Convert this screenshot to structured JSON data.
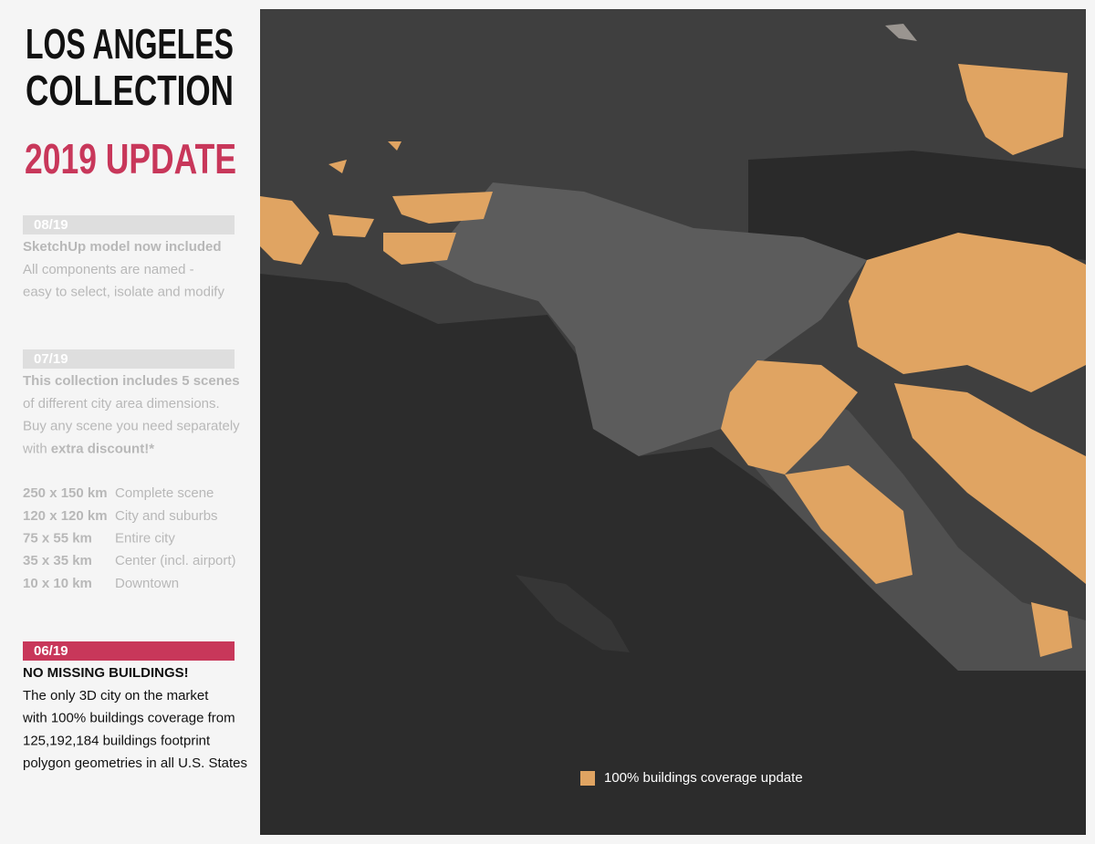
{
  "sidebar": {
    "title": [
      "LOS ANGELES",
      "COLLECTION"
    ],
    "subtitle": "2019 UPDATE",
    "updates": [
      {
        "date": "08/19",
        "heading": "SketchUp model now included",
        "lines": [
          "All components are named -",
          "easy to select, isolate and modify"
        ]
      },
      {
        "date": "07/19",
        "heading": "This collection includes 5 scenes",
        "lines": [
          "of different city area dimensions.",
          "Buy any scene you need separately"
        ],
        "last_line": {
          "text": "with",
          "bold": "extra discount!*"
        },
        "scenes": [
          [
            "250 x 150 km",
            "Complete scene"
          ],
          [
            "120 x 120 km",
            "City and suburbs"
          ],
          [
            "75 x 55 km",
            "Entire city"
          ],
          [
            "35 x 35 km",
            "Center (incl. airport)"
          ],
          [
            "10 x 10 km",
            "Downtown"
          ]
        ]
      },
      {
        "date": "06/19",
        "heading": "NO MISSING BUILDINGS!",
        "lines": [
          "The only 3D city on the market",
          "with 100% buildings coverage from",
          "125,192,184 buildings footprint",
          "polygon geometries in all U.S. States"
        ]
      }
    ]
  },
  "map": {
    "legend": "100% buildings coverage update"
  }
}
